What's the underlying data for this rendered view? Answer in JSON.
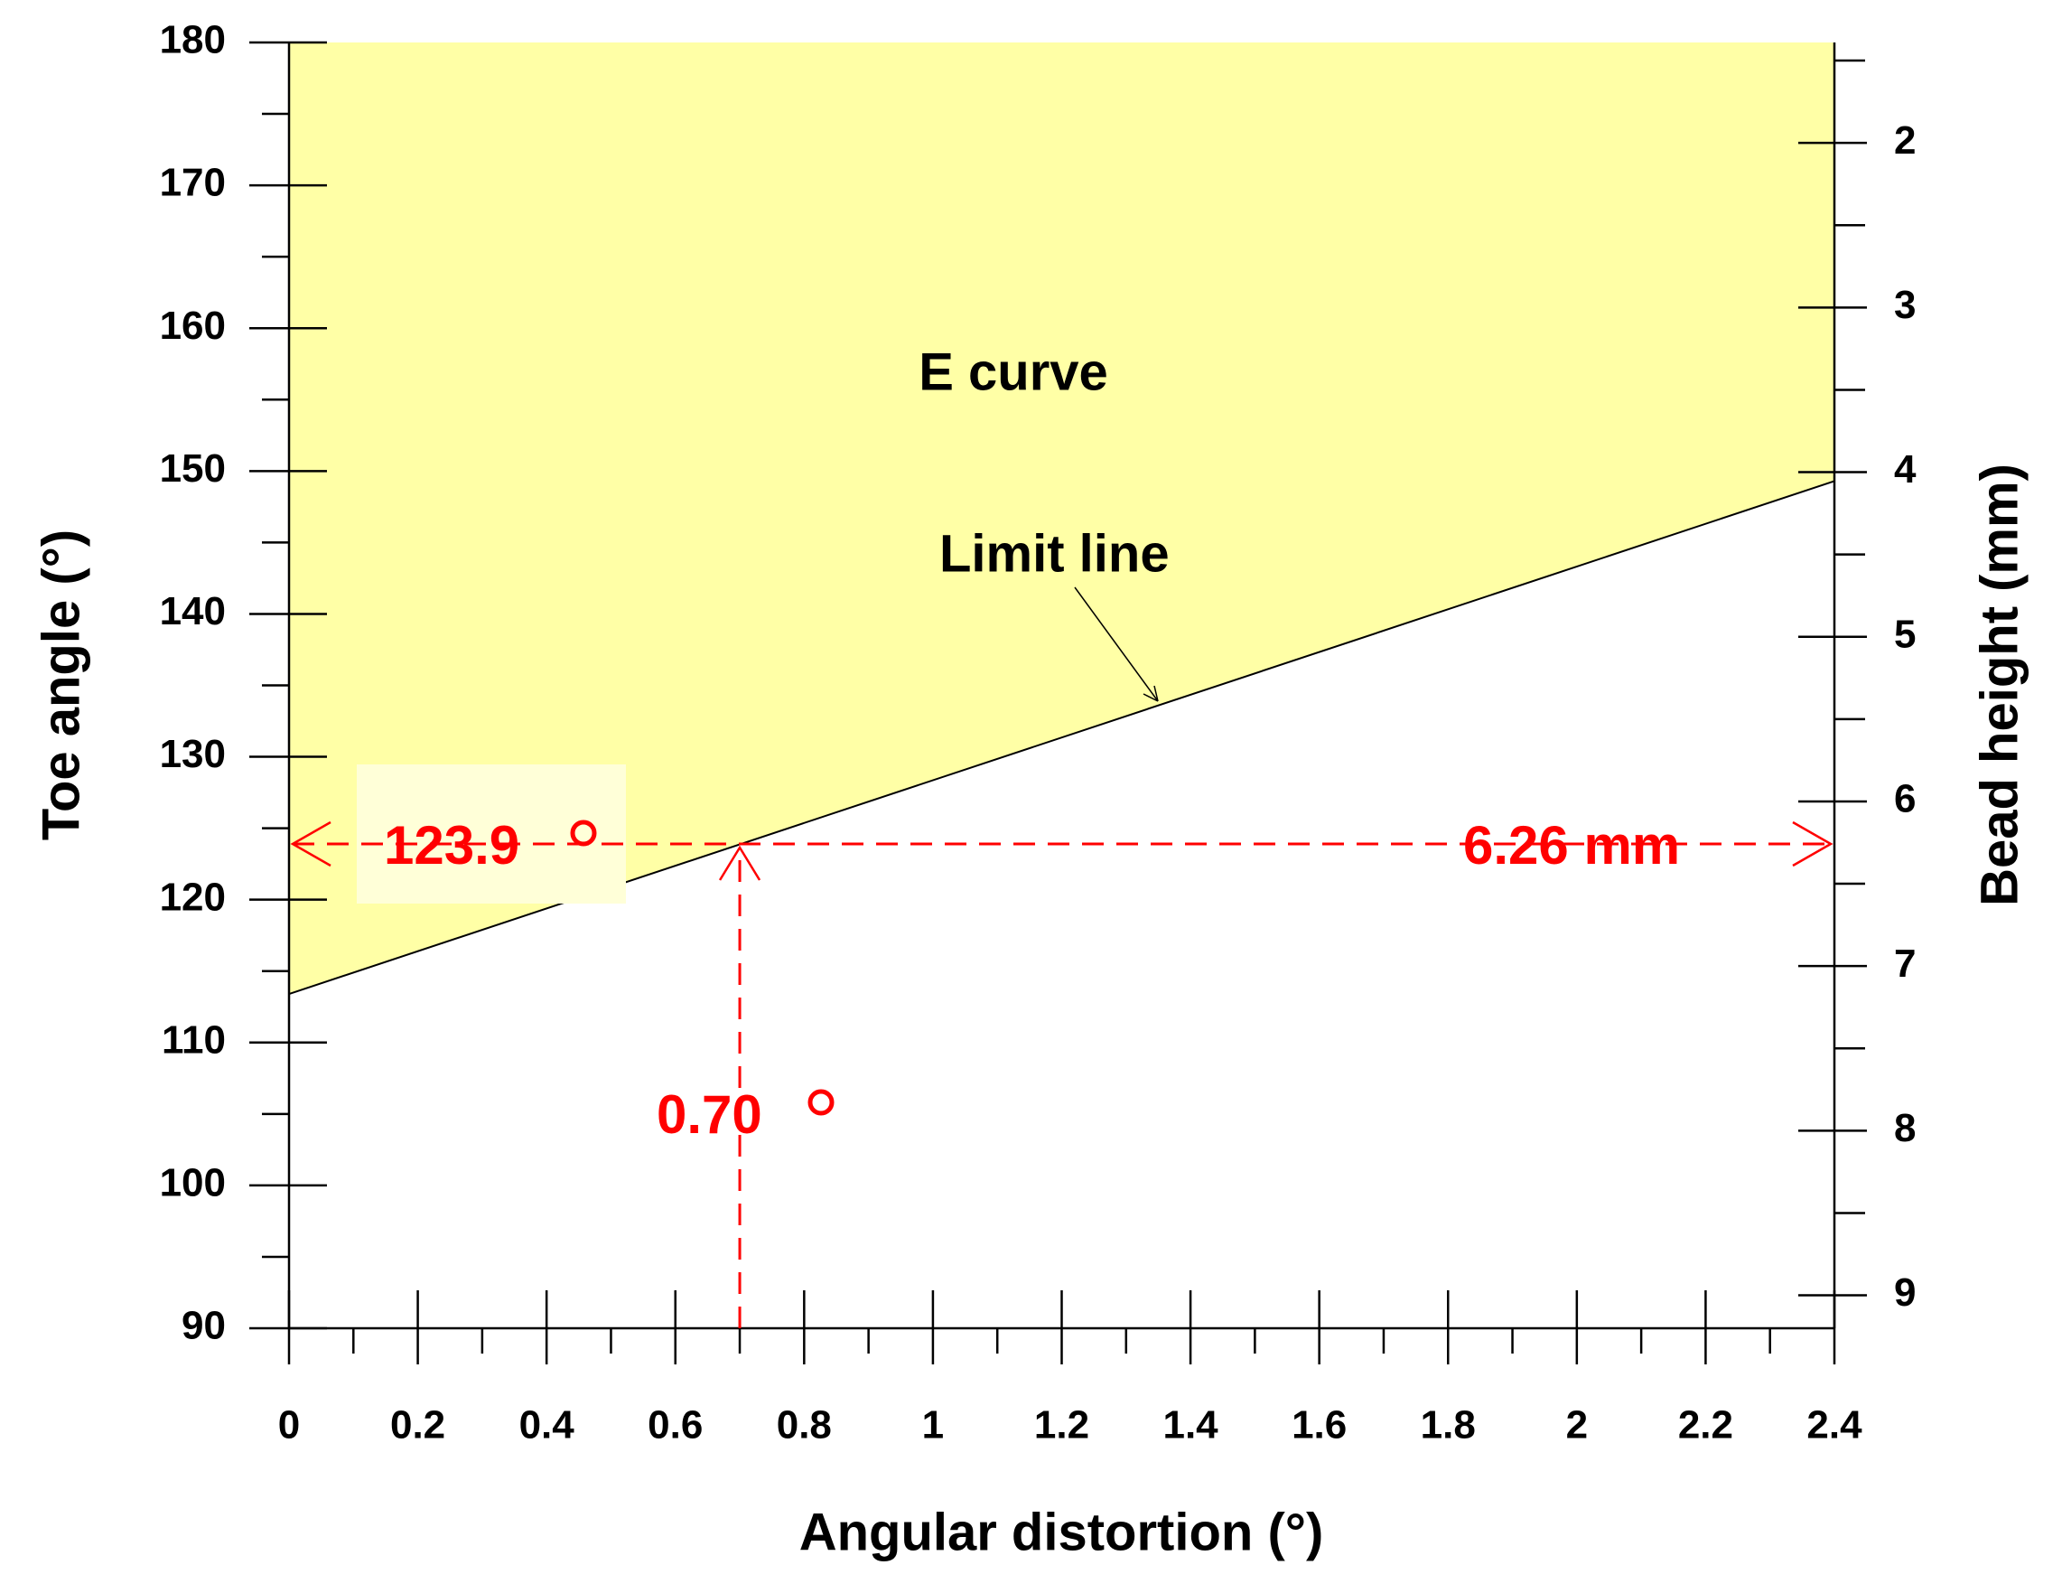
{
  "chart_data": {
    "type": "line",
    "xlabel": "Angular distortion (°)",
    "ylabel": "Toe angle (°)",
    "y2label": "Bead height (mm)",
    "xlim": [
      0,
      2.4
    ],
    "xticks": [
      0,
      0.2,
      0.4,
      0.6,
      0.8,
      1,
      1.2,
      1.4,
      1.6,
      1.8,
      2,
      2.2,
      2.4
    ],
    "ylim": [
      90,
      180
    ],
    "yticks": [
      90,
      100,
      110,
      120,
      130,
      140,
      150,
      160,
      170,
      180
    ],
    "y2lim": [
      9.2,
      1.39
    ],
    "y2ticks": [
      2,
      3,
      4,
      5,
      6,
      7,
      8,
      9
    ],
    "series": [
      {
        "name": "Limit line",
        "color": "#000000",
        "fill": "#ffffa6",
        "x": [
          0,
          2.4
        ],
        "values": [
          113.4,
          149.3
        ]
      }
    ],
    "region_label": "E curve",
    "readout": {
      "x": {
        "value": 0.7,
        "label": "0.70"
      },
      "y": 123.9,
      "y2": {
        "value": 6.26,
        "label": "6.26 mm"
      },
      "color": "#ff0000"
    }
  }
}
